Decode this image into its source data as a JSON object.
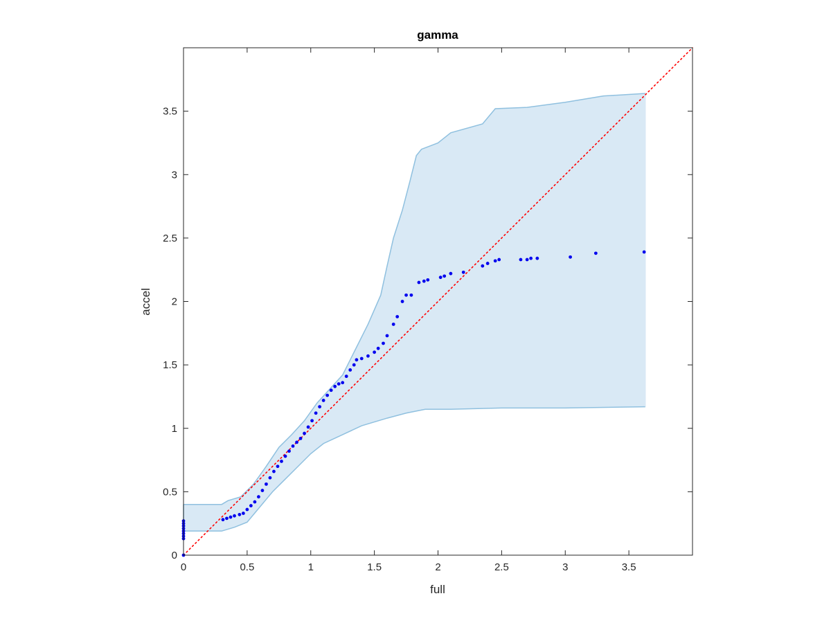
{
  "chart_data": {
    "type": "scatter",
    "title": "gamma",
    "xlabel": "full",
    "ylabel": "accel",
    "xlim": [
      0,
      4
    ],
    "ylim": [
      0,
      4
    ],
    "xticks": [
      0,
      0.5,
      1,
      1.5,
      2,
      2.5,
      3,
      3.5
    ],
    "yticks": [
      0,
      0.5,
      1,
      1.5,
      2,
      2.5,
      3,
      3.5
    ],
    "xtick_labels": [
      "0",
      "0.5",
      "1",
      "1.5",
      "2",
      "2.5",
      "3",
      "3.5"
    ],
    "ytick_labels": [
      "0",
      "0.5",
      "1",
      "1.5",
      "2",
      "2.5",
      "3",
      "3.5"
    ],
    "grid": false,
    "colors": {
      "points": "#0000ee",
      "band_fill": "#d9e9f5",
      "band_edge": "#8fc0df",
      "reference_line": "#ff0000",
      "axes": "#262626"
    },
    "reference_line": {
      "from": [
        0,
        0
      ],
      "to": [
        4,
        4
      ],
      "style": "dotted"
    },
    "band": {
      "upper": [
        [
          0,
          0.4
        ],
        [
          0.3,
          0.4
        ],
        [
          0.35,
          0.43
        ],
        [
          0.45,
          0.46
        ],
        [
          0.55,
          0.56
        ],
        [
          0.65,
          0.7
        ],
        [
          0.75,
          0.85
        ],
        [
          0.85,
          0.95
        ],
        [
          0.95,
          1.06
        ],
        [
          1.05,
          1.2
        ],
        [
          1.15,
          1.31
        ],
        [
          1.25,
          1.42
        ],
        [
          1.35,
          1.62
        ],
        [
          1.45,
          1.82
        ],
        [
          1.55,
          2.05
        ],
        [
          1.6,
          2.28
        ],
        [
          1.65,
          2.5
        ],
        [
          1.72,
          2.72
        ],
        [
          1.78,
          2.95
        ],
        [
          1.83,
          3.15
        ],
        [
          1.87,
          3.2
        ],
        [
          2.0,
          3.25
        ],
        [
          2.1,
          3.33
        ],
        [
          2.35,
          3.4
        ],
        [
          2.45,
          3.52
        ],
        [
          2.7,
          3.53
        ],
        [
          3.0,
          3.57
        ],
        [
          3.3,
          3.62
        ],
        [
          3.63,
          3.64
        ]
      ],
      "lower": [
        [
          0,
          0.19
        ],
        [
          0.3,
          0.19
        ],
        [
          0.4,
          0.22
        ],
        [
          0.5,
          0.26
        ],
        [
          0.6,
          0.38
        ],
        [
          0.7,
          0.5
        ],
        [
          0.8,
          0.6
        ],
        [
          0.9,
          0.7
        ],
        [
          1.0,
          0.8
        ],
        [
          1.1,
          0.88
        ],
        [
          1.25,
          0.95
        ],
        [
          1.4,
          1.02
        ],
        [
          1.6,
          1.08
        ],
        [
          1.75,
          1.12
        ],
        [
          1.9,
          1.15
        ],
        [
          2.1,
          1.15
        ],
        [
          2.5,
          1.16
        ],
        [
          3.0,
          1.16
        ],
        [
          3.63,
          1.17
        ]
      ]
    },
    "series": [
      {
        "points": [
          [
            0,
            0
          ],
          [
            0,
            0.13
          ],
          [
            0,
            0.15
          ],
          [
            0,
            0.17
          ],
          [
            0,
            0.19
          ],
          [
            0,
            0.21
          ],
          [
            0,
            0.23
          ],
          [
            0,
            0.25
          ],
          [
            0,
            0.27
          ],
          [
            0.31,
            0.28
          ],
          [
            0.34,
            0.29
          ],
          [
            0.37,
            0.3
          ],
          [
            0.4,
            0.31
          ],
          [
            0.44,
            0.32
          ],
          [
            0.47,
            0.33
          ],
          [
            0.5,
            0.36
          ],
          [
            0.53,
            0.39
          ],
          [
            0.56,
            0.42
          ],
          [
            0.59,
            0.46
          ],
          [
            0.62,
            0.51
          ],
          [
            0.65,
            0.56
          ],
          [
            0.68,
            0.61
          ],
          [
            0.71,
            0.66
          ],
          [
            0.74,
            0.7
          ],
          [
            0.77,
            0.74
          ],
          [
            0.8,
            0.78
          ],
          [
            0.83,
            0.82
          ],
          [
            0.86,
            0.86
          ],
          [
            0.89,
            0.89
          ],
          [
            0.92,
            0.92
          ],
          [
            0.95,
            0.96
          ],
          [
            0.98,
            1.01
          ],
          [
            1.01,
            1.06
          ],
          [
            1.04,
            1.12
          ],
          [
            1.07,
            1.17
          ],
          [
            1.1,
            1.22
          ],
          [
            1.13,
            1.26
          ],
          [
            1.16,
            1.3
          ],
          [
            1.19,
            1.33
          ],
          [
            1.22,
            1.35
          ],
          [
            1.25,
            1.36
          ],
          [
            1.28,
            1.41
          ],
          [
            1.31,
            1.46
          ],
          [
            1.34,
            1.5
          ],
          [
            1.36,
            1.54
          ],
          [
            1.4,
            1.55
          ],
          [
            1.45,
            1.57
          ],
          [
            1.5,
            1.6
          ],
          [
            1.53,
            1.63
          ],
          [
            1.57,
            1.67
          ],
          [
            1.6,
            1.73
          ],
          [
            1.65,
            1.82
          ],
          [
            1.68,
            1.88
          ],
          [
            1.72,
            2.0
          ],
          [
            1.75,
            2.05
          ],
          [
            1.79,
            2.05
          ],
          [
            1.85,
            2.15
          ],
          [
            1.89,
            2.16
          ],
          [
            1.92,
            2.17
          ],
          [
            2.02,
            2.19
          ],
          [
            2.05,
            2.2
          ],
          [
            2.1,
            2.22
          ],
          [
            2.2,
            2.23
          ],
          [
            2.35,
            2.28
          ],
          [
            2.39,
            2.3
          ],
          [
            2.45,
            2.32
          ],
          [
            2.48,
            2.33
          ],
          [
            2.65,
            2.33
          ],
          [
            2.7,
            2.33
          ],
          [
            2.73,
            2.34
          ],
          [
            2.78,
            2.34
          ],
          [
            3.04,
            2.35
          ],
          [
            3.24,
            2.38
          ],
          [
            3.62,
            2.39
          ]
        ]
      }
    ]
  }
}
